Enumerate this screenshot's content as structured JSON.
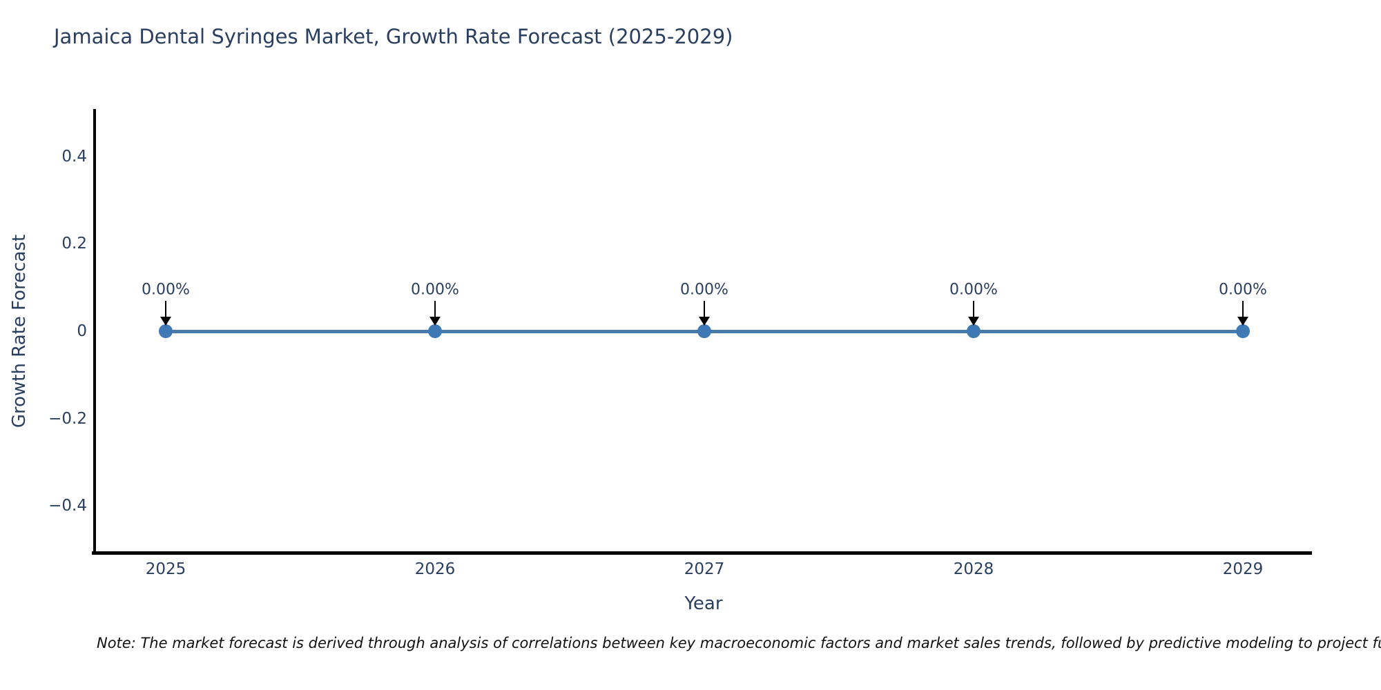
{
  "title": "Jamaica Dental Syringes Market, Growth Rate Forecast (2025-2029)",
  "note": "Note: The market forecast is derived through analysis of correlations between key macroeconomic factors and market sales trends, followed by predictive modeling to project future sa",
  "chart_data": {
    "type": "line",
    "title": "Jamaica Dental Syringes Market, Growth Rate Forecast (2025-2029)",
    "xlabel": "Year",
    "ylabel": "Growth Rate Forecast",
    "categories": [
      "2025",
      "2026",
      "2027",
      "2028",
      "2029"
    ],
    "series": [
      {
        "name": "Growth Rate Forecast",
        "values": [
          0,
          0,
          0,
          0,
          0
        ],
        "point_labels": [
          "0.00%",
          "0.00%",
          "0.00%",
          "0.00%",
          "0.00%"
        ]
      }
    ],
    "y_tick_labels": [
      "0.4",
      "0.2",
      "0",
      "−0.2",
      "−0.4"
    ],
    "y_tick_values": [
      0.4,
      0.2,
      0,
      -0.2,
      -0.4
    ],
    "ylim": [
      -0.505,
      0.505
    ],
    "grid": false,
    "legend_position": "none",
    "annotation_arrows": true,
    "colors": {
      "line": "#4a7aa9",
      "marker": "#3e79b6",
      "axis_spine": "#000000",
      "text": "#2a3f5f",
      "arrow": "#000000",
      "note": "#111111"
    }
  }
}
